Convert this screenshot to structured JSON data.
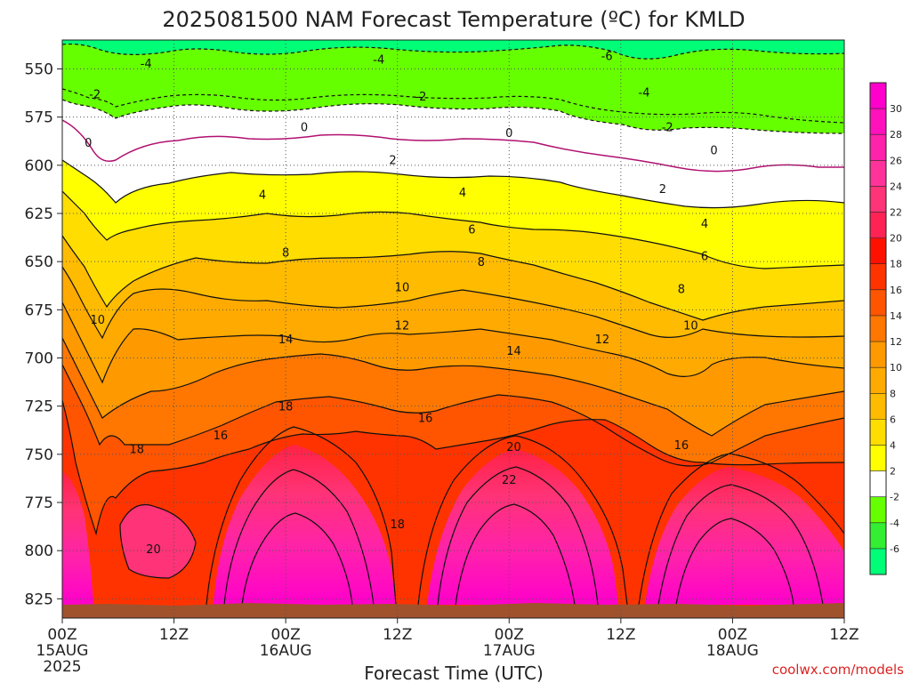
{
  "chart_data": {
    "type": "heatmap",
    "title": "2025081500 NAM Forecast Temperature (ºC) for KMLD",
    "xlabel": "Forecast Time (UTC)",
    "ylabel": "",
    "x_range_hours": [
      0,
      84
    ],
    "y_range_hpa": [
      535,
      835
    ],
    "y_ticks": [
      "550",
      "575",
      "600",
      "625",
      "650",
      "675",
      "700",
      "725",
      "750",
      "775",
      "800",
      "825"
    ],
    "x_ticks": [
      {
        "hour": 0,
        "label": "00Z",
        "date": "15AUG",
        "year": "2025"
      },
      {
        "hour": 12,
        "label": "12Z",
        "date": "",
        "year": ""
      },
      {
        "hour": 24,
        "label": "00Z",
        "date": "16AUG",
        "year": ""
      },
      {
        "hour": 36,
        "label": "12Z",
        "date": "",
        "year": ""
      },
      {
        "hour": 48,
        "label": "00Z",
        "date": "17AUG",
        "year": ""
      },
      {
        "hour": 60,
        "label": "12Z",
        "date": "",
        "year": ""
      },
      {
        "hour": 72,
        "label": "00Z",
        "date": "18AUG",
        "year": ""
      },
      {
        "hour": 84,
        "label": "12Z",
        "date": "",
        "year": ""
      }
    ],
    "colorbar": {
      "labels": [
        "30",
        "28",
        "26",
        "24",
        "22",
        "20",
        "18",
        "16",
        "14",
        "12",
        "10",
        "8",
        "6",
        "4",
        "2",
        "-2",
        "-4",
        "-6"
      ],
      "colors": [
        "#ff00cc",
        "#ff11bb",
        "#ff22aa",
        "#ff3399",
        "#ff3377",
        "#ff2255",
        "#ff1100",
        "#ff3300",
        "#ff5500",
        "#ff7700",
        "#ff9900",
        "#ffaa00",
        "#ffbb00",
        "#ffdd00",
        "#ffff00",
        "#ffffff",
        "#66ff00",
        "#33ee33",
        "#00ff77"
      ]
    },
    "grid": true,
    "contour_labels": [
      {
        "text": "-4",
        "h": 9.0,
        "p": 547
      },
      {
        "text": "-4",
        "h": 34.0,
        "p": 545
      },
      {
        "text": "-6",
        "h": 58.5,
        "p": 543
      },
      {
        "text": "-4",
        "h": 62.5,
        "p": 562
      },
      {
        "text": "-2",
        "h": 3.5,
        "p": 563
      },
      {
        "text": "-2",
        "h": 38.5,
        "p": 564
      },
      {
        "text": "-2",
        "h": 65.0,
        "p": 580
      },
      {
        "text": "0",
        "h": 2.8,
        "p": 588
      },
      {
        "text": "0",
        "h": 26.0,
        "p": 580
      },
      {
        "text": "0",
        "h": 48.0,
        "p": 583
      },
      {
        "text": "0",
        "h": 70.0,
        "p": 592
      },
      {
        "text": "2",
        "h": 35.5,
        "p": 597
      },
      {
        "text": "2",
        "h": 64.5,
        "p": 612
      },
      {
        "text": "4",
        "h": 21.5,
        "p": 615
      },
      {
        "text": "4",
        "h": 43.0,
        "p": 614
      },
      {
        "text": "4",
        "h": 69.0,
        "p": 630
      },
      {
        "text": "6",
        "h": 44.0,
        "p": 633
      },
      {
        "text": "6",
        "h": 69.0,
        "p": 647
      },
      {
        "text": "8",
        "h": 24.0,
        "p": 645
      },
      {
        "text": "8",
        "h": 45.0,
        "p": 650
      },
      {
        "text": "8",
        "h": 66.5,
        "p": 664
      },
      {
        "text": "10",
        "h": 3.8,
        "p": 680
      },
      {
        "text": "10",
        "h": 36.5,
        "p": 663
      },
      {
        "text": "10",
        "h": 67.5,
        "p": 683
      },
      {
        "text": "12",
        "h": 36.5,
        "p": 683
      },
      {
        "text": "12",
        "h": 58.0,
        "p": 690
      },
      {
        "text": "14",
        "h": 24.0,
        "p": 690
      },
      {
        "text": "14",
        "h": 48.5,
        "p": 696
      },
      {
        "text": "16",
        "h": 17.0,
        "p": 740
      },
      {
        "text": "16",
        "h": 39.0,
        "p": 731
      },
      {
        "text": "16",
        "h": 66.5,
        "p": 745
      },
      {
        "text": "18",
        "h": 8.0,
        "p": 747
      },
      {
        "text": "18",
        "h": 24.0,
        "p": 725
      },
      {
        "text": "18",
        "h": 36.0,
        "p": 786
      },
      {
        "text": "20",
        "h": 9.8,
        "p": 799
      },
      {
        "text": "20",
        "h": 48.5,
        "p": 746
      },
      {
        "text": "22",
        "h": 48.0,
        "p": 763
      }
    ],
    "credit": "coolwx.com/models"
  }
}
